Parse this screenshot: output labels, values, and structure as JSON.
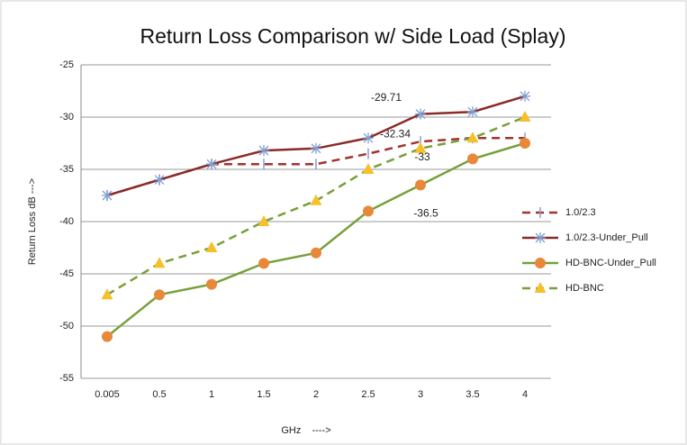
{
  "chart_data": {
    "type": "line",
    "title": "Return Loss Comparison w/ Side Load (Splay)",
    "x_label": "GHz    ---->",
    "y_label": "Return Loss dB --->",
    "categories": [
      "0.005",
      "0.5",
      "1",
      "1.5",
      "2",
      "2.5",
      "3",
      "3.5",
      "4"
    ],
    "ylim": [
      -55,
      -25
    ],
    "yticks": [
      -55,
      -50,
      -45,
      -40,
      -35,
      -30,
      -25
    ],
    "grid": true,
    "legend": "right",
    "series": [
      {
        "name": "1.0/2.3",
        "color": "#a0342f",
        "dash": true,
        "marker": "bar",
        "marker_color": "#8c9ad0",
        "values": [
          -37.5,
          -36,
          -34.5,
          -34.5,
          -34.5,
          -33.5,
          -32.34,
          -32,
          -32
        ],
        "value_labels": [
          null,
          null,
          null,
          null,
          null,
          null,
          "-32.34",
          null,
          null
        ]
      },
      {
        "name": "1.0/2.3-Under_Pull",
        "color": "#8b2a2a",
        "dash": false,
        "marker": "star",
        "marker_color": "#7f9fd0",
        "values": [
          -37.5,
          -36,
          -34.5,
          -33.2,
          -33,
          -32,
          -29.71,
          -29.5,
          -28
        ],
        "value_labels": [
          null,
          null,
          null,
          null,
          null,
          null,
          "-29.71",
          null,
          null
        ]
      },
      {
        "name": "HD-BNC-Under_Pull",
        "color": "#77a03a",
        "dash": false,
        "marker": "circle",
        "marker_color": "#e8883a",
        "values": [
          -51,
          -47,
          -46,
          -44,
          -43,
          -39,
          -36.5,
          -34,
          -32.5
        ],
        "value_labels": [
          null,
          null,
          null,
          null,
          null,
          null,
          "-36.5",
          null,
          null
        ]
      },
      {
        "name": "HD-BNC",
        "color": "#77a03a",
        "dash": true,
        "marker": "triangle",
        "marker_color": "#f5c02a",
        "values": [
          -47,
          -44,
          -42.5,
          -40,
          -38,
          -35,
          -33,
          -32,
          -30
        ],
        "value_labels": [
          null,
          null,
          null,
          null,
          null,
          null,
          "-33",
          null,
          null
        ]
      }
    ]
  }
}
